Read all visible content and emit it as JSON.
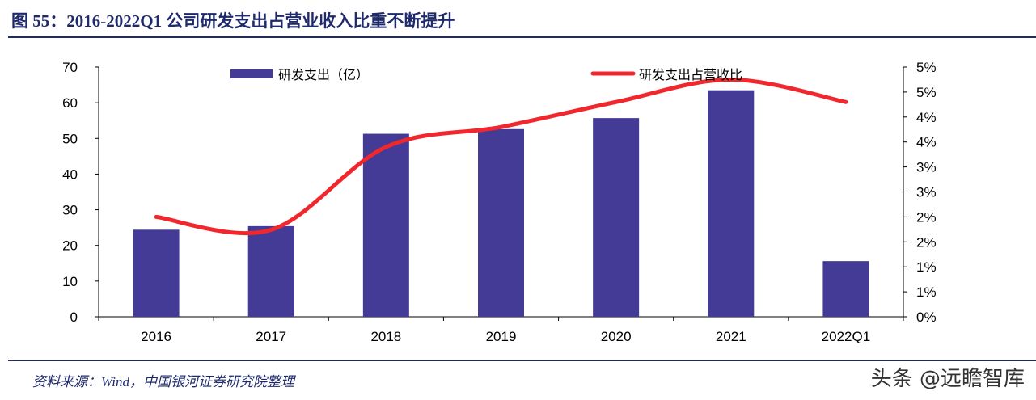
{
  "title": "图 55：2016-2022Q1 公司研发支出占营业收入比重不断提升",
  "source": "资料来源：Wind，中国银河证券研究院整理",
  "watermark": "头条 @远瞻智库",
  "colors": {
    "bar": "#433b96",
    "line": "#f0282d",
    "axis": "#000000",
    "text": "#000000",
    "title": "#1f2a6d"
  },
  "chart_data": {
    "type": "bar",
    "categories": [
      "2016",
      "2017",
      "2018",
      "2019",
      "2020",
      "2021",
      "2022Q1"
    ],
    "series": [
      {
        "name": "研发支出（亿）",
        "type": "bar",
        "axis": "left",
        "values": [
          24.4,
          25.4,
          51.3,
          52.6,
          55.7,
          63.5,
          15.6
        ]
      },
      {
        "name": "研发支出占营收比",
        "type": "line",
        "axis": "right",
        "values": [
          2.0,
          1.74,
          3.4,
          3.8,
          4.3,
          4.75,
          4.3
        ]
      }
    ],
    "y_left": {
      "min": 0,
      "max": 70,
      "ticks": [
        "0",
        "10",
        "20",
        "30",
        "40",
        "50",
        "60",
        "70"
      ]
    },
    "y_right": {
      "min": 0,
      "max": 5,
      "ticks": [
        "0%",
        "1%",
        "1%",
        "2%",
        "2%",
        "3%",
        "3%",
        "4%",
        "4%",
        "5%",
        "5%"
      ]
    },
    "legend": "top",
    "grid": false
  }
}
